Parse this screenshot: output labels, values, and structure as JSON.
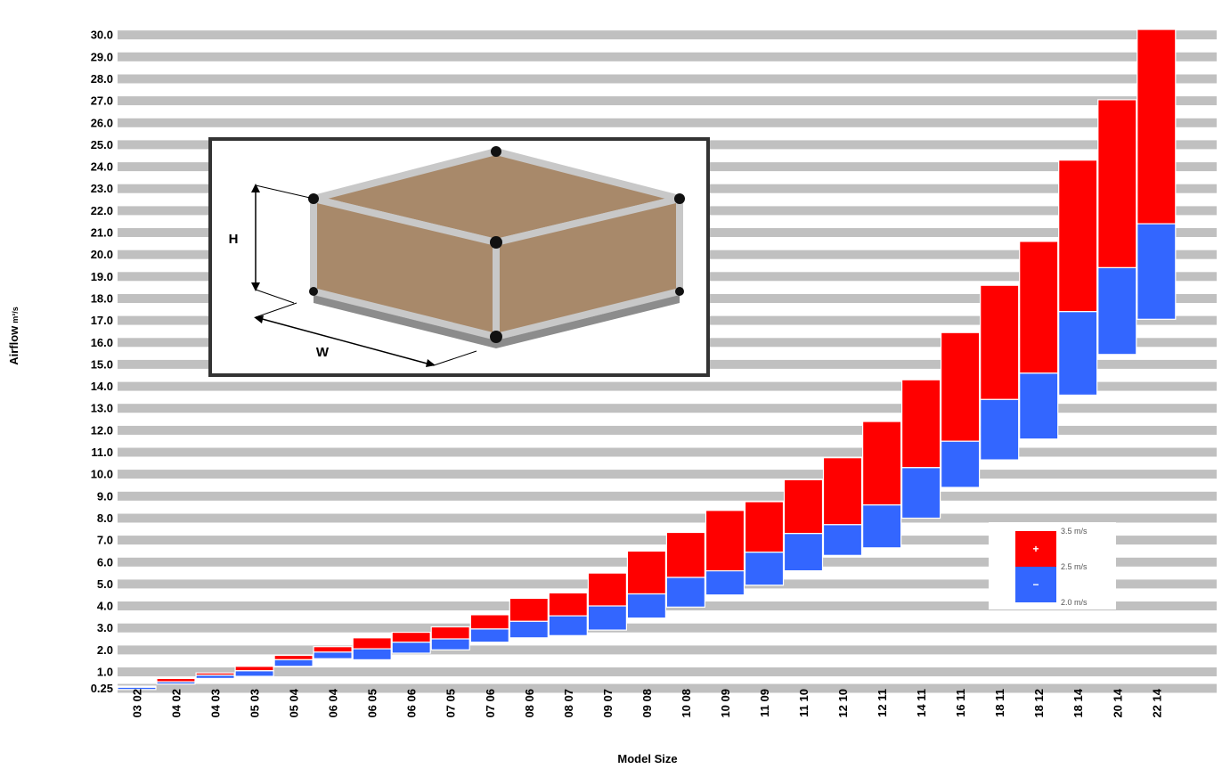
{
  "chart_data": {
    "type": "bar",
    "xlabel": "Model Size",
    "ylabel": "Airflow",
    "ylabel_unit": "m³/s",
    "ylim": [
      0,
      30.25
    ],
    "yticks": [
      "0.25",
      "1.0",
      "2.0",
      "3.0",
      "4.0",
      "5.0",
      "6.0",
      "7.0",
      "8.0",
      "9.0",
      "10.0",
      "11.0",
      "12.0",
      "13.0",
      "14.0",
      "15.0",
      "16.0",
      "17.0",
      "18.0",
      "19.0",
      "20.0",
      "21.0",
      "22.0",
      "23.0",
      "24.0",
      "25.0",
      "26.0",
      "27.0",
      "28.0",
      "29.0",
      "30.0"
    ],
    "grid": true,
    "categories": [
      "03 02",
      "04 02",
      "04 03",
      "05 03",
      "05 04",
      "06 04",
      "06 05",
      "06 06",
      "07 05",
      "07 06",
      "08 06",
      "08 07",
      "09 07",
      "09 08",
      "10 08",
      "10 09",
      "11 09",
      "11 10",
      "12 10",
      "12 11",
      "14 11",
      "16 11",
      "18 11",
      "18 12",
      "18 14",
      "20 14",
      "22 14"
    ],
    "series": [
      {
        "name": "2.0 m/s",
        "values": [
          0.2,
          0.45,
          0.7,
          0.8,
          1.25,
          1.6,
          1.55,
          1.85,
          2.0,
          2.35,
          2.55,
          2.65,
          2.9,
          3.45,
          3.95,
          4.5,
          4.95,
          5.6,
          6.3,
          6.65,
          8.0,
          9.4,
          10.65,
          11.6,
          13.6,
          15.45,
          17.05
        ]
      },
      {
        "name": "2.5 m/s",
        "values": [
          0.3,
          0.55,
          0.85,
          1.05,
          1.55,
          1.9,
          2.05,
          2.35,
          2.5,
          2.95,
          3.3,
          3.55,
          4.0,
          4.55,
          5.3,
          5.6,
          6.45,
          7.3,
          7.7,
          8.6,
          10.3,
          11.5,
          13.4,
          14.6,
          17.4,
          19.4,
          21.4
        ]
      },
      {
        "name": "3.5 m/s",
        "values": [
          0.35,
          0.7,
          0.95,
          1.25,
          1.75,
          2.15,
          2.55,
          2.8,
          3.05,
          3.6,
          4.35,
          4.6,
          5.5,
          6.5,
          7.35,
          8.35,
          8.75,
          9.75,
          10.75,
          12.4,
          14.3,
          16.45,
          18.6,
          20.6,
          24.3,
          27.05,
          30.25
        ]
      }
    ],
    "legend": {
      "position": "bottom-right",
      "labels": [
        "3.5 m/s",
        "2.5 m/s",
        "2.0 m/s"
      ],
      "plus_symbol": "+",
      "minus_symbol": "−",
      "colors": [
        "#ff0000",
        "#3366ff"
      ]
    },
    "colors": {
      "upper": "#ff0000",
      "lower": "#3366ff",
      "grid": "#c0c0c0"
    },
    "inset": {
      "label_height": "H",
      "label_width": "W",
      "panel_color": "#a8896a",
      "frame_color": "#c8c8c8"
    }
  }
}
